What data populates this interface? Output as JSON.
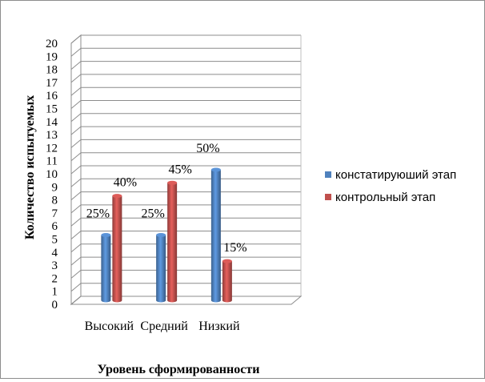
{
  "chart_data": {
    "type": "bar",
    "categories": [
      "Высокий",
      "Средний",
      "Низкий"
    ],
    "series": [
      {
        "name": "констатируюший этап",
        "values": [
          5,
          5,
          10
        ],
        "labels": [
          "25%",
          "25%",
          "50%"
        ],
        "color": "#4f81bd"
      },
      {
        "name": "контрольный этап",
        "values": [
          8,
          9,
          3
        ],
        "labels": [
          "40%",
          "45%",
          "15%"
        ],
        "color": "#c0504d"
      }
    ],
    "ylim": [
      0,
      20
    ],
    "yticks": [
      "0",
      "1",
      "2",
      "3",
      "4",
      "5",
      "6",
      "7",
      "8",
      "9",
      "10",
      "11",
      "12",
      "13",
      "14",
      "15",
      "16",
      "17",
      "18",
      "19",
      "20"
    ],
    "xlabel": "Уровень сформированности",
    "ylabel": "Количество испытуемых",
    "legend_position": "right",
    "grid": true,
    "style": "3d-cylinder"
  }
}
